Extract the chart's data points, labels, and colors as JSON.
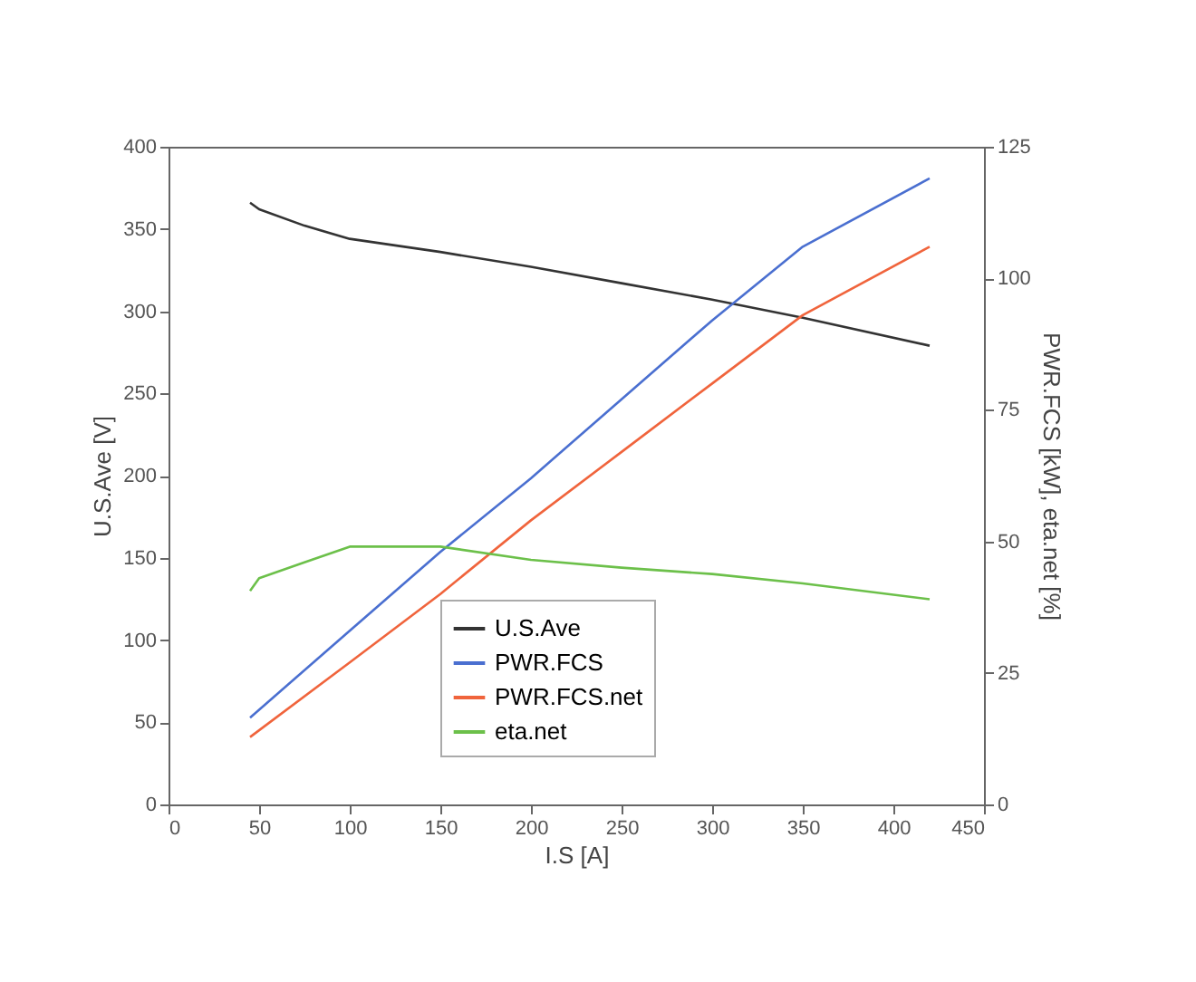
{
  "chart_data": {
    "type": "line",
    "xlabel": "I.S [A]",
    "ylabel": "U.S.Ave [V]",
    "y2label": "PWR.FCS [kW], eta.net [%]",
    "xlim": [
      0,
      450
    ],
    "xticks": [
      0,
      50,
      100,
      150,
      200,
      250,
      300,
      350,
      400,
      450
    ],
    "ylim": [
      0,
      400
    ],
    "yticks": [
      0,
      50,
      100,
      150,
      200,
      250,
      300,
      350,
      400
    ],
    "y2lim": [
      0,
      125
    ],
    "y2ticks": [
      0,
      25,
      50,
      75,
      100,
      125
    ],
    "grid": false,
    "legend": "bottom",
    "marker": "none",
    "line_style": "solid",
    "series": [
      {
        "name": "U.S.Ave",
        "color": "#333333",
        "x": [
          45,
          50,
          75,
          100,
          150,
          200,
          250,
          300,
          350,
          420
        ],
        "values": [
          366,
          362,
          352,
          344,
          336,
          327,
          317,
          307,
          296,
          279
        ]
      },
      {
        "name": "PWR.FCS",
        "color": "#4a6fd0",
        "axis": "y2",
        "x": [
          45,
          100,
          150,
          200,
          250,
          300,
          350,
          420
        ],
        "values": [
          16.5,
          33,
          48,
          62,
          77,
          92,
          106,
          119
        ]
      },
      {
        "name": "PWR.FCS.net",
        "color": "#f0643c",
        "axis": "y2",
        "x": [
          45,
          100,
          150,
          200,
          250,
          300,
          350,
          420
        ],
        "values": [
          12.8,
          27,
          40,
          54,
          67,
          80,
          93,
          106
        ]
      },
      {
        "name": "eta.net",
        "color": "#6cc04a",
        "axis": "y2",
        "x": [
          45,
          50,
          75,
          100,
          150,
          200,
          250,
          300,
          350,
          420
        ],
        "values": [
          40.6,
          43,
          46,
          49,
          49,
          46.5,
          45,
          43.8,
          42,
          39
        ]
      }
    ]
  }
}
